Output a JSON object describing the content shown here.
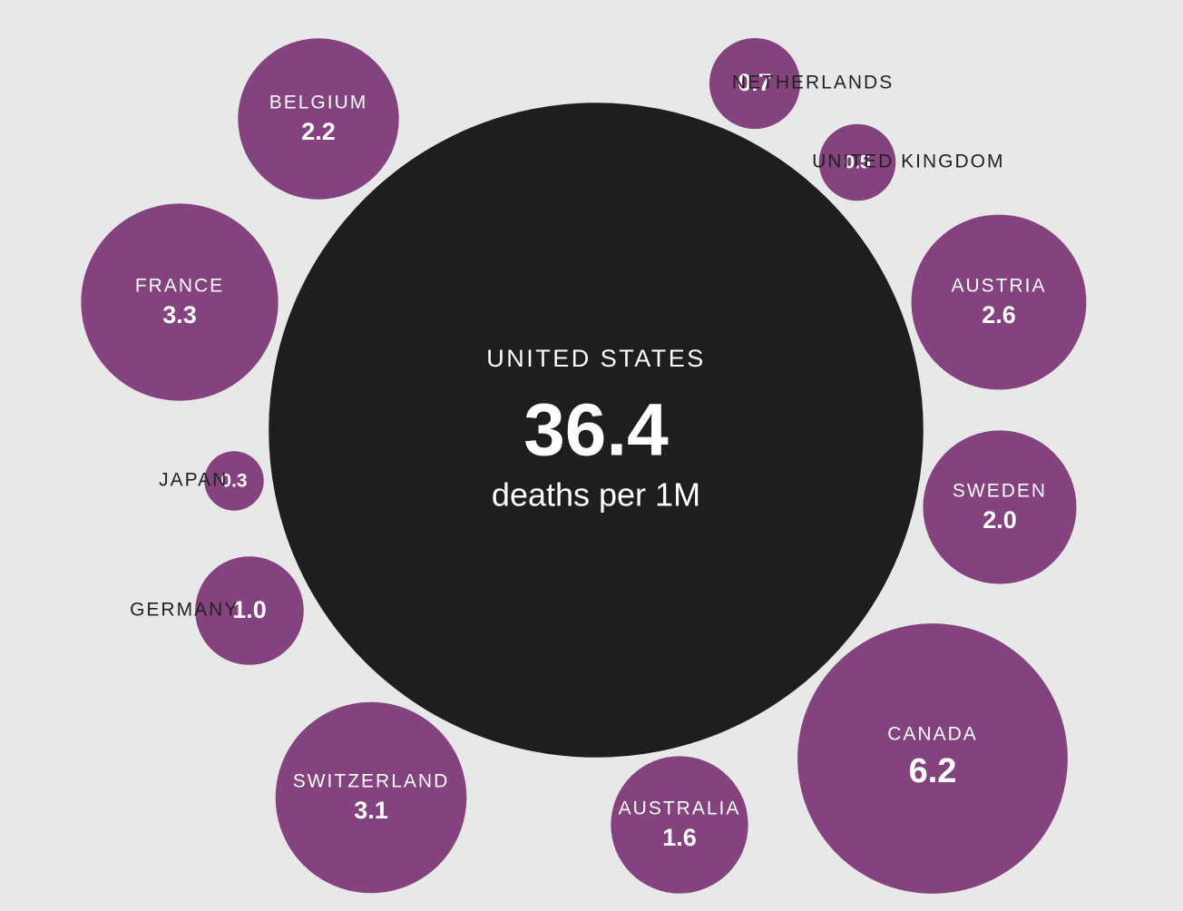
{
  "chart_data": {
    "type": "bubble",
    "categories": [
      "UNITED STATES",
      "CANADA",
      "FRANCE",
      "SWITZERLAND",
      "AUSTRIA",
      "BELGIUM",
      "SWEDEN",
      "AUSTRALIA",
      "GERMANY",
      "NETHERLANDS",
      "UNITED KINGDOM",
      "JAPAN"
    ],
    "values": [
      36.4,
      6.2,
      3.3,
      3.1,
      2.6,
      2.2,
      2.0,
      1.6,
      1.0,
      0.7,
      0.5,
      0.3
    ],
    "value_labels": [
      "36.4",
      "6.2",
      "3.3",
      "3.1",
      "2.6",
      "2.2",
      "2.0",
      "1.6",
      "1.0",
      "0.7",
      "0.5",
      "0.3"
    ],
    "unit_label": "deaths per 1M",
    "colors": [
      "#1e1e20",
      "#84437f",
      "#84437f",
      "#84437f",
      "#84437f",
      "#84437f",
      "#84437f",
      "#84437f",
      "#84437f",
      "#84437f",
      "#84437f",
      "#84437f"
    ]
  }
}
